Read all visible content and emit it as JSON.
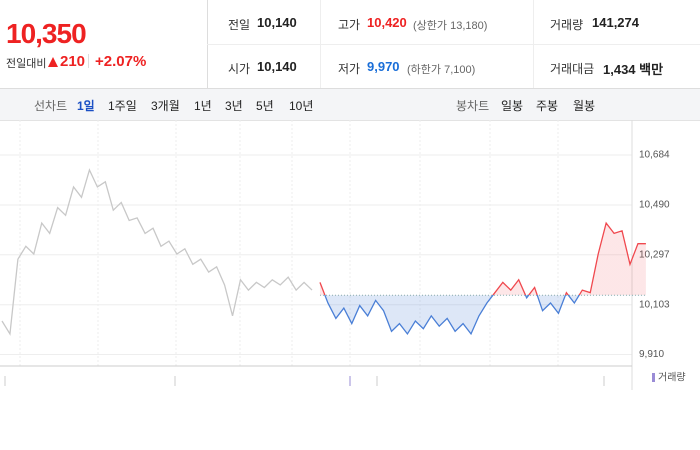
{
  "price": {
    "current": "10,350",
    "change_label": "전일대비",
    "change": "210",
    "change_rate": "+2.07%"
  },
  "stats": [
    {
      "label": "전일",
      "value": "10,140"
    },
    {
      "label": "고가",
      "value": "10,420",
      "note": "(상한가 13,180)"
    },
    {
      "label": "거래량",
      "value": "141,274"
    },
    {
      "label": "시가",
      "value": "10,140"
    },
    {
      "label": "저가",
      "value": "9,970",
      "note": "(하한가 7,100)"
    },
    {
      "label": "거래대금",
      "value": "1,434 백만"
    }
  ],
  "tabs": {
    "line_label": "선차트",
    "line": [
      "1일",
      "1주일",
      "3개월",
      "1년",
      "3년",
      "5년",
      "10년"
    ],
    "candle_label": "봉차트",
    "candle": [
      "일봉",
      "주봉",
      "월봉"
    ]
  },
  "chart_data": {
    "type": "line",
    "legend": "거래량",
    "baseline": 10140,
    "ylim": [
      9850,
      10750
    ],
    "yticks": [
      {
        "value": 9910,
        "label": "9,910"
      },
      {
        "value": 10103,
        "label": "10,103"
      },
      {
        "value": 10297,
        "label": "10,297"
      },
      {
        "value": 10490,
        "label": "10,490"
      },
      {
        "value": 10684,
        "label": "10,684"
      }
    ],
    "series": [
      {
        "color": "#c8c8c8",
        "values": [
          10040,
          9990,
          10280,
          10330,
          10300,
          10420,
          10380,
          10480,
          10450,
          10560,
          10520,
          10626,
          10560,
          10580,
          10470,
          10500,
          10430,
          10440,
          10380,
          10400,
          10330,
          10350,
          10300,
          10320,
          10260,
          10280,
          10230,
          10250,
          10180,
          10060,
          10200,
          10160,
          10190,
          10170,
          10200,
          10180,
          10210,
          10160,
          10190,
          10160,
          null,
          null,
          null,
          null,
          null,
          null,
          null,
          null,
          null,
          null,
          null,
          null,
          null,
          null,
          null,
          null,
          null,
          null,
          null,
          null,
          null,
          null,
          null,
          null,
          null,
          null,
          null,
          null,
          null,
          null,
          null,
          null,
          null,
          null,
          null,
          null,
          null,
          null,
          null,
          null
        ]
      },
      {
        "up_color": "#f0484e",
        "down_color": "#4a7fd6",
        "values": [
          null,
          null,
          null,
          null,
          null,
          null,
          null,
          null,
          null,
          null,
          null,
          null,
          null,
          null,
          null,
          null,
          null,
          null,
          null,
          null,
          null,
          null,
          null,
          null,
          null,
          null,
          null,
          null,
          null,
          null,
          null,
          null,
          null,
          null,
          null,
          null,
          null,
          null,
          null,
          null,
          10190,
          10110,
          10050,
          10090,
          10030,
          10100,
          10060,
          10120,
          10080,
          10000,
          10030,
          9990,
          10040,
          10010,
          10060,
          10020,
          10050,
          10000,
          10030,
          9990,
          10060,
          10110,
          10150,
          10190,
          10160,
          10200,
          10130,
          10170,
          10080,
          10110,
          10070,
          10150,
          10110,
          10160,
          10150,
          10300,
          10420,
          10380,
          10390,
          10260,
          10340,
          10340
        ]
      }
    ]
  }
}
